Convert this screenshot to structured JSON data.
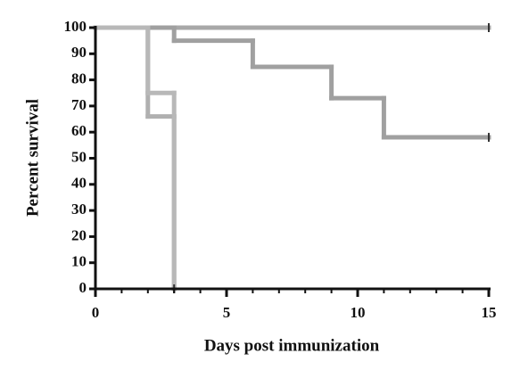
{
  "chart_data": {
    "type": "step",
    "x_label": "Days post immunization",
    "y_label": "Percent survival",
    "xlim": [
      0,
      15
    ],
    "xticks": [
      0,
      5,
      10,
      15
    ],
    "ylim": [
      0,
      100
    ],
    "yticks": [
      0,
      10,
      20,
      30,
      40,
      50,
      60,
      70,
      80,
      90,
      100
    ],
    "series": [
      {
        "color": "#a8a8a8",
        "x": [
          0,
          15
        ],
        "values": [
          100,
          100
        ]
      },
      {
        "color": "#a0a0a0",
        "x": [
          0,
          3,
          6,
          9,
          11,
          15
        ],
        "values": [
          100,
          95,
          85,
          73,
          58,
          58
        ]
      },
      {
        "color": "#b0b0b0",
        "x": [
          0,
          2,
          3
        ],
        "values": [
          100,
          66,
          0
        ]
      },
      {
        "color": "#b8b8b8",
        "x": [
          0,
          2,
          3
        ],
        "values": [
          100,
          75,
          0
        ]
      }
    ]
  }
}
